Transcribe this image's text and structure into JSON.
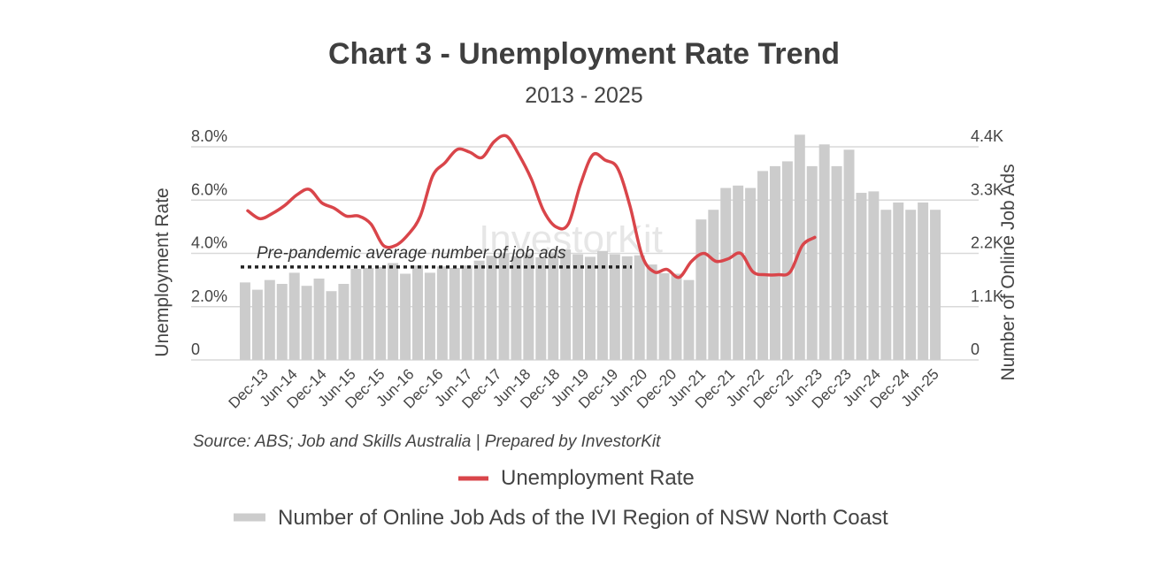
{
  "chart_data": {
    "type": "bar+line",
    "title": "Chart 3 - Unemployment Rate Trend",
    "subtitle": "2013 - 2025",
    "y_left": {
      "label": "Unemployment Rate",
      "ticks": [
        "0",
        "2.0%",
        "4.0%",
        "6.0%",
        "8.0%"
      ],
      "range": [
        0,
        8.0
      ]
    },
    "y_right": {
      "label": "Number of Online Job Ads",
      "ticks": [
        "0",
        "1.1K",
        "2.2K",
        "3.3K",
        "4.4K"
      ],
      "range": [
        0,
        4400
      ]
    },
    "x_tick_labels": [
      "Dec-13",
      "Jun-14",
      "Dec-14",
      "Jun-15",
      "Dec-15",
      "Jun-16",
      "Dec-16",
      "Jun-17",
      "Dec-17",
      "Jun-18",
      "Dec-18",
      "Jun-19",
      "Dec-19",
      "Jun-20",
      "Dec-20",
      "Jun-21",
      "Dec-21",
      "Jun-22",
      "Dec-22",
      "Jun-23",
      "Dec-23",
      "Jun-24",
      "Dec-24",
      "Jun-25"
    ],
    "grid": true,
    "job_ads": {
      "name": "Number of Online Job Ads of the IVI Region of NSW North Coast",
      "color": "#cccccc",
      "values": [
        1600,
        1450,
        1650,
        1570,
        1800,
        1530,
        1680,
        1420,
        1570,
        1880,
        1900,
        1920,
        2000,
        1780,
        1950,
        1800,
        1930,
        1900,
        1950,
        2050,
        2150,
        2200,
        2140,
        2180,
        2120,
        2220,
        2280,
        2180,
        2130,
        2250,
        2180,
        2140,
        2160,
        1970,
        1790,
        1780,
        1650,
        2900,
        3100,
        3550,
        3600,
        3550,
        3900,
        4000,
        4100,
        4650,
        4000,
        4450,
        4000,
        4340,
        3450,
        3480,
        3100,
        3250,
        3100,
        3250,
        3100
      ]
    },
    "unemployment": {
      "name": "Unemployment Rate",
      "color": "#d9454a",
      "values": [
        5.6,
        5.3,
        5.5,
        5.8,
        6.2,
        6.4,
        5.9,
        5.7,
        5.4,
        5.4,
        5.1,
        4.3,
        4.3,
        4.7,
        5.4,
        6.9,
        7.4,
        7.9,
        7.8,
        7.6,
        8.2,
        8.4,
        7.7,
        6.8,
        5.6,
        5.0,
        5.1,
        6.6,
        7.7,
        7.5,
        7.2,
        5.8,
        3.9,
        3.3,
        3.4,
        3.1,
        3.7,
        4.0,
        3.7,
        3.8,
        4.0,
        3.3,
        3.2,
        3.2,
        3.3,
        4.3,
        4.6
      ]
    },
    "annotation": "Pre-pandemic average number of job ads",
    "annotation_level": 1920,
    "watermark": "InvestorKit",
    "source": "Source: ABS; Job and Skills Australia | Prepared by InvestorKit",
    "legend": [
      {
        "label": "Unemployment Rate",
        "color": "#d9454a",
        "kind": "line"
      },
      {
        "label": "Number of Online Job Ads of the IVI Region of NSW North Coast",
        "color": "#cccccc",
        "kind": "bar"
      }
    ],
    "legend_position": "bottom"
  }
}
